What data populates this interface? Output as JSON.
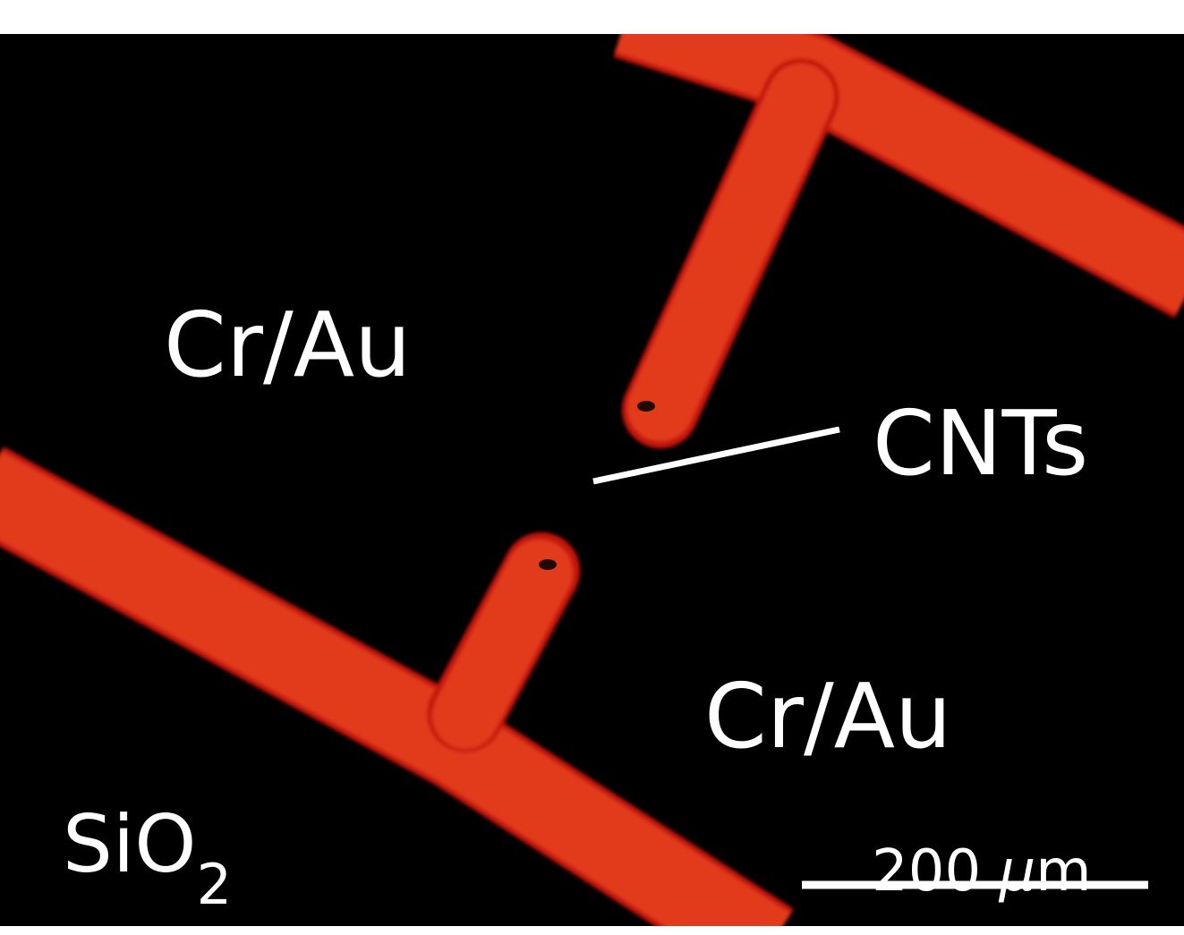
{
  "image": {
    "background_color": "#000000",
    "trace_color": "#e8361c",
    "trace_edge_color": "#c41608",
    "annotation_color": "#ffffff"
  },
  "labels": {
    "electrode_top": "Cr/Au",
    "electrode_bottom": "Cr/Au",
    "cnts": "CNTs",
    "substrate_main": "SiO",
    "substrate_subscript": "2",
    "scale_value": "200 ",
    "scale_unit_prefix": "μ",
    "scale_unit": "m"
  }
}
